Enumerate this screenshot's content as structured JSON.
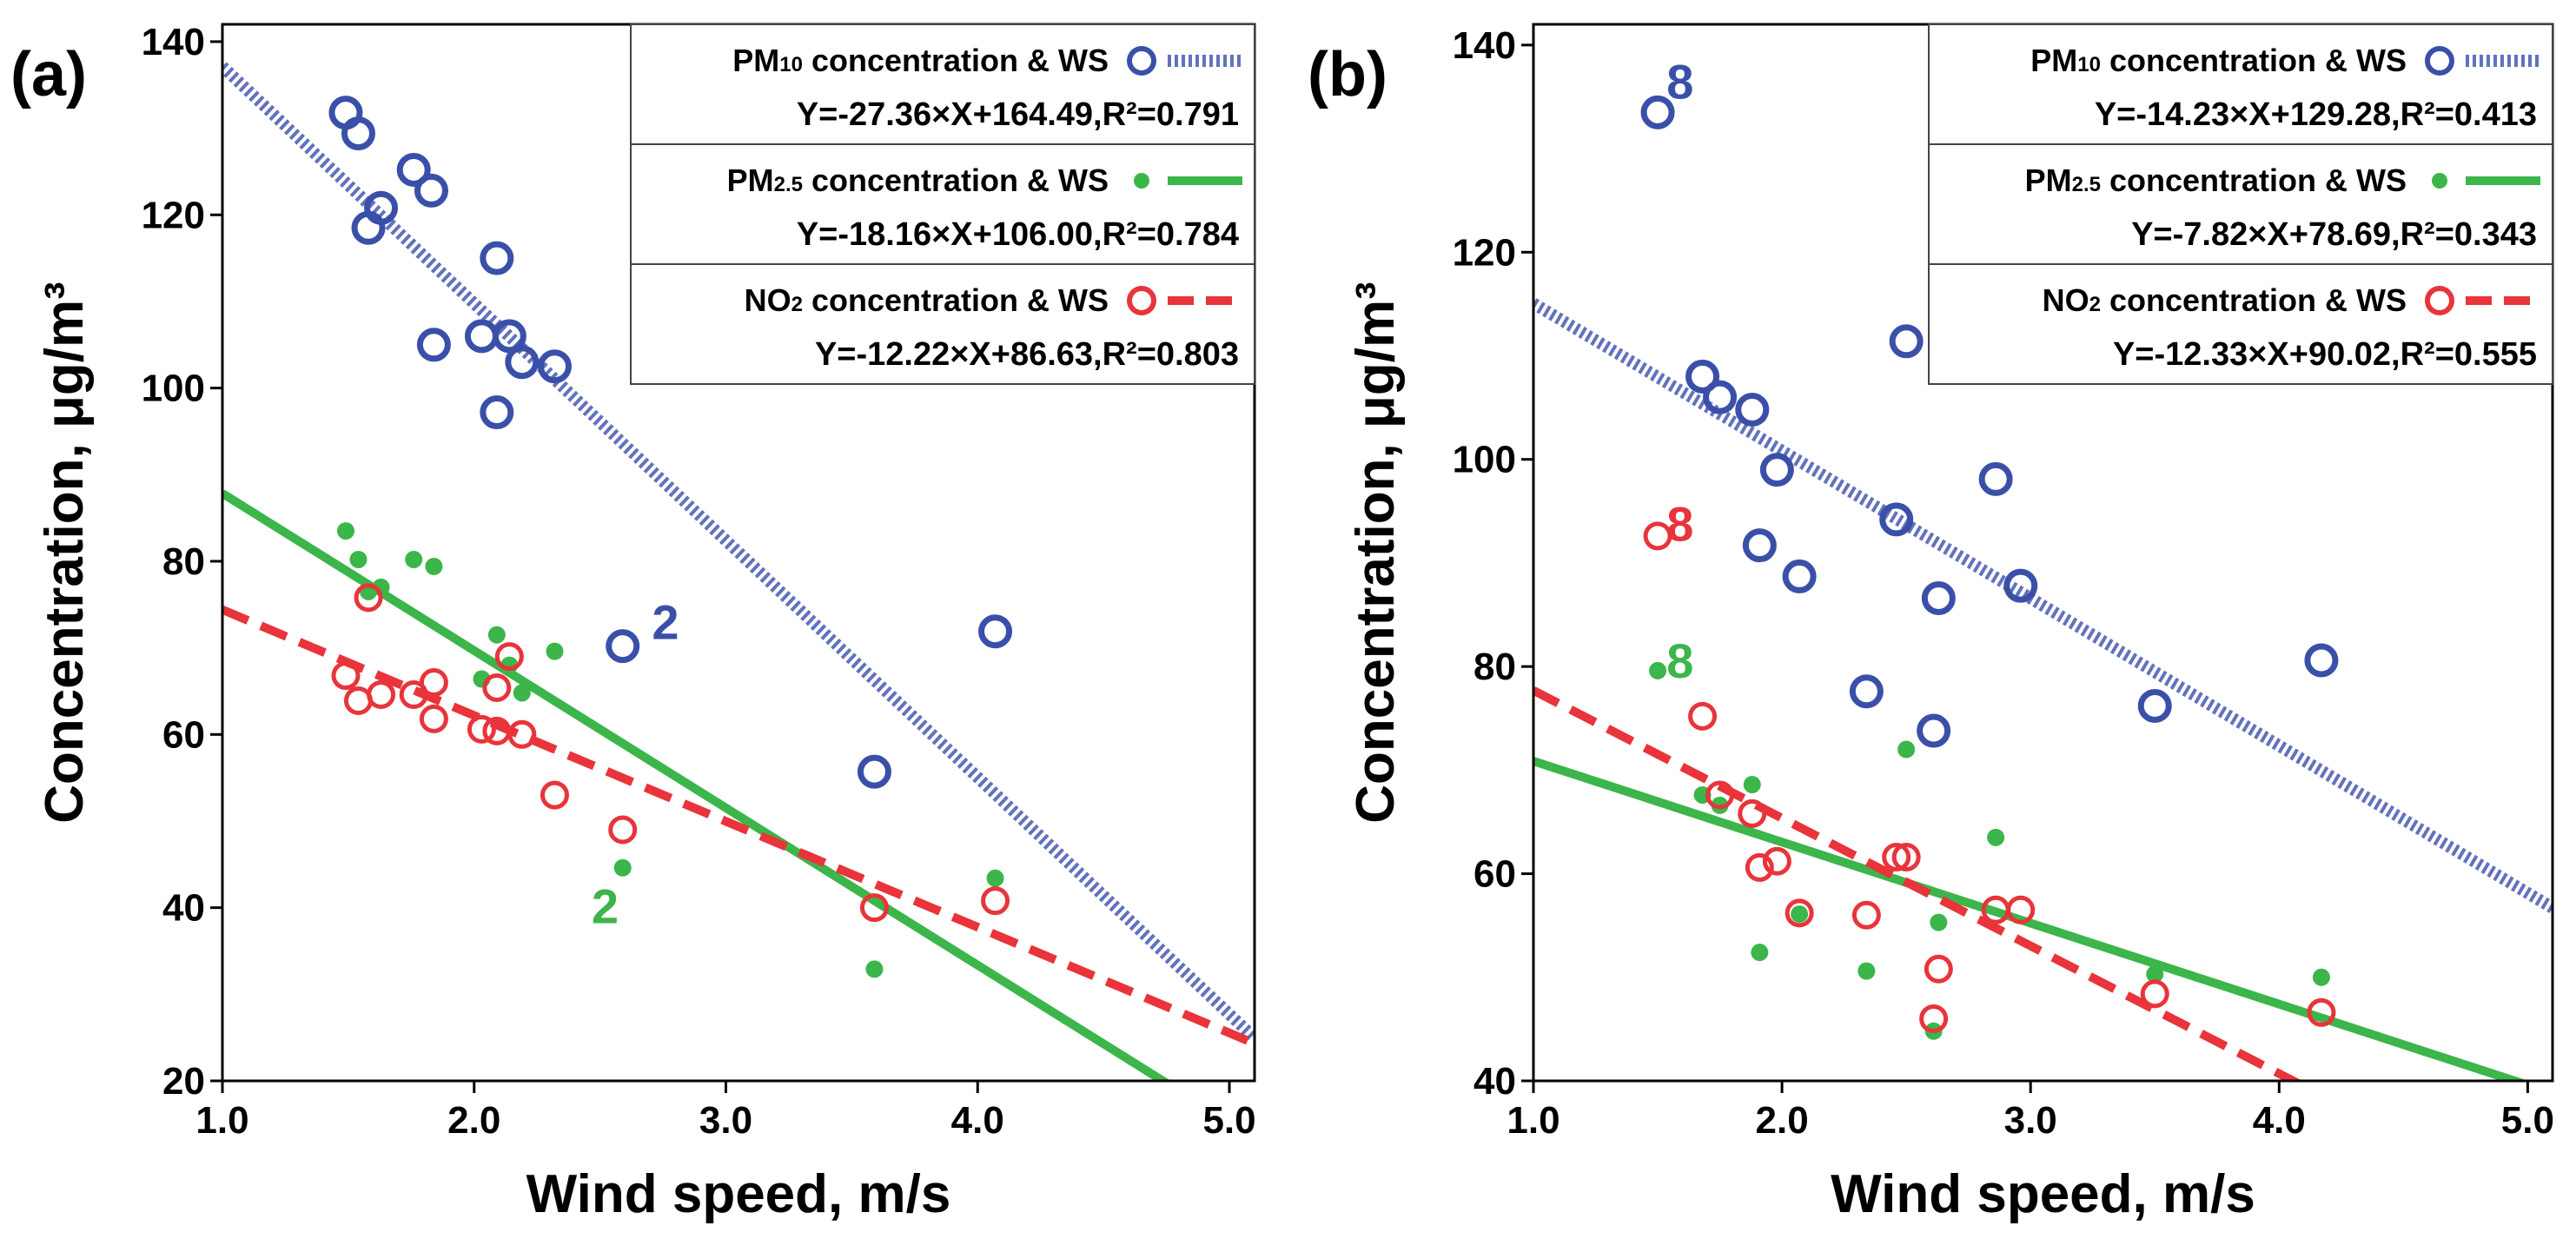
{
  "chart_data": [
    {
      "panel_label": "(a)",
      "type": "scatter",
      "xlabel": "Wind speed, m/s",
      "ylabel": "Concentration, μg/m³",
      "xlim": [
        1.0,
        5.1
      ],
      "ylim": [
        20,
        142
      ],
      "xticks": [
        1.0,
        2.0,
        3.0,
        4.0,
        5.0
      ],
      "xtick_labels": [
        "1.0",
        "2.0",
        "3.0",
        "4.0",
        "5.0"
      ],
      "yticks": [
        20,
        40,
        60,
        80,
        100,
        120,
        140
      ],
      "ytick_labels": [
        "20",
        "40",
        "60",
        "80",
        "100",
        "120",
        "140"
      ],
      "series": [
        {
          "name": "PM10 concentration & WS",
          "legend_main": "PM",
          "legend_sub": "10",
          "legend_rest": " concentration & WS",
          "equation": "Y=-27.36×X+164.49,R²=0.791",
          "color": "#3a50a8",
          "line_color": "#6272bf",
          "marker": "ring",
          "line_style": "dotted",
          "slope": -27.36,
          "intercept": 164.49,
          "x": [
            1.49,
            1.54,
            1.58,
            1.63,
            1.76,
            1.83,
            1.84,
            2.03,
            2.09,
            2.09,
            2.14,
            2.19,
            2.32,
            2.59,
            3.59,
            4.07
          ],
          "y": [
            131.8,
            129.4,
            118.5,
            120.8,
            125.2,
            122.8,
            105.0,
            106.0,
            115.0,
            97.2,
            106.0,
            103.0,
            102.5,
            70.2,
            55.7,
            71.9
          ]
        },
        {
          "name": "PM2.5 concentration & WS",
          "legend_main": "PM",
          "legend_sub": "2.5",
          "legend_rest": " concentration & WS",
          "equation": "Y=-18.16×X+106.00,R²=0.784",
          "color": "#3cb54a",
          "line_color": "#3cb54a",
          "marker": "dot",
          "line_style": "solid",
          "slope": -18.16,
          "intercept": 106.0,
          "x": [
            1.49,
            1.54,
            1.58,
            1.63,
            1.76,
            1.84,
            2.03,
            2.09,
            2.14,
            2.19,
            2.32,
            2.59,
            3.59,
            4.07
          ],
          "y": [
            83.5,
            80.2,
            76.5,
            77.0,
            80.2,
            79.4,
            66.4,
            71.5,
            68.0,
            64.8,
            69.6,
            44.6,
            32.9,
            43.4
          ]
        },
        {
          "name": "NO2 concentration & WS",
          "legend_main": "NO",
          "legend_sub": "2",
          "legend_rest": " concentration & WS",
          "equation": "Y=-12.22×X+86.63,R²=0.803",
          "color": "#e8343a",
          "line_color": "#e8343a",
          "marker": "ring",
          "line_style": "dashed",
          "slope": -12.22,
          "intercept": 86.63,
          "x": [
            1.49,
            1.54,
            1.58,
            1.63,
            1.76,
            1.84,
            1.84,
            2.03,
            2.09,
            2.09,
            2.14,
            2.19,
            2.32,
            2.59,
            3.59,
            4.07
          ],
          "y": [
            66.8,
            63.9,
            75.8,
            64.6,
            64.6,
            66.0,
            61.8,
            60.6,
            65.4,
            60.4,
            69.0,
            60.0,
            53.0,
            49.0,
            40.0,
            40.8
          ]
        }
      ],
      "annotations": [
        {
          "text": "2",
          "x": 2.76,
          "y": 73.0,
          "color": "#3a50a8"
        },
        {
          "text": "2",
          "x": 2.52,
          "y": 40.2,
          "color": "#3cb54a"
        }
      ]
    },
    {
      "panel_label": "(b)",
      "type": "scatter",
      "xlabel": "Wind speed, m/s",
      "ylabel": "Concentration, μg/m³",
      "xlim": [
        1.0,
        5.1
      ],
      "ylim": [
        40,
        142
      ],
      "xticks": [
        1.0,
        2.0,
        3.0,
        4.0,
        5.0
      ],
      "xtick_labels": [
        "1.0",
        "2.0",
        "3.0",
        "4.0",
        "5.0"
      ],
      "yticks": [
        40,
        60,
        80,
        100,
        120,
        140
      ],
      "ytick_labels": [
        "40",
        "60",
        "80",
        "100",
        "120",
        "140"
      ],
      "series": [
        {
          "name": "PM10 concentration & WS",
          "legend_main": "PM",
          "legend_sub": "10",
          "legend_rest": " concentration & WS",
          "equation": "Y=-14.23×X+129.28,R²=0.413",
          "color": "#3a50a8",
          "line_color": "#6272bf",
          "marker": "ring",
          "line_style": "dotted",
          "slope": -14.23,
          "intercept": 129.28,
          "x": [
            1.5,
            1.68,
            1.75,
            1.88,
            1.91,
            1.98,
            2.07,
            2.34,
            2.46,
            2.5,
            2.61,
            2.63,
            2.86,
            2.96,
            3.5,
            4.17
          ],
          "y": [
            133.5,
            108.0,
            106.0,
            104.8,
            91.7,
            99.0,
            88.7,
            77.6,
            94.2,
            111.4,
            73.8,
            86.6,
            98.1,
            87.8,
            76.2,
            80.6
          ]
        },
        {
          "name": "PM2.5 concentration & WS",
          "legend_main": "PM",
          "legend_sub": "2.5",
          "legend_rest": " concentration & WS",
          "equation": "Y=-7.82×X+78.69,R²=0.343",
          "color": "#3cb54a",
          "line_color": "#3cb54a",
          "marker": "dot",
          "line_style": "solid",
          "slope": -7.82,
          "intercept": 78.69,
          "x": [
            1.5,
            1.68,
            1.75,
            1.88,
            1.91,
            2.07,
            2.34,
            2.5,
            2.61,
            2.63,
            2.86,
            3.5,
            4.17
          ],
          "y": [
            79.6,
            67.6,
            66.6,
            68.6,
            52.4,
            56.1,
            50.6,
            72.0,
            44.8,
            55.3,
            63.5,
            50.3,
            50.0
          ]
        },
        {
          "name": "NO2 concentration & WS",
          "legend_main": "NO",
          "legend_sub": "2",
          "legend_rest": " concentration & WS",
          "equation": "Y=-12.33×X+90.02,R²=0.555",
          "color": "#e8343a",
          "line_color": "#e8343a",
          "marker": "ring",
          "line_style": "dashed",
          "slope": -12.33,
          "intercept": 90.02,
          "x": [
            1.5,
            1.68,
            1.75,
            1.88,
            1.91,
            1.98,
            2.07,
            2.34,
            2.46,
            2.5,
            2.61,
            2.63,
            2.86,
            2.96,
            3.5,
            4.17
          ],
          "y": [
            92.6,
            75.2,
            67.6,
            65.8,
            60.6,
            61.2,
            56.2,
            56.0,
            61.6,
            61.6,
            46.0,
            50.8,
            56.5,
            56.5,
            48.4,
            46.6
          ]
        }
      ],
      "annotations": [
        {
          "text": "8",
          "x": 1.59,
          "y": 136.5,
          "color": "#3a50a8"
        },
        {
          "text": "8",
          "x": 1.59,
          "y": 93.8,
          "color": "#e8343a"
        },
        {
          "text": "8",
          "x": 1.59,
          "y": 80.6,
          "color": "#3cb54a"
        }
      ]
    }
  ]
}
